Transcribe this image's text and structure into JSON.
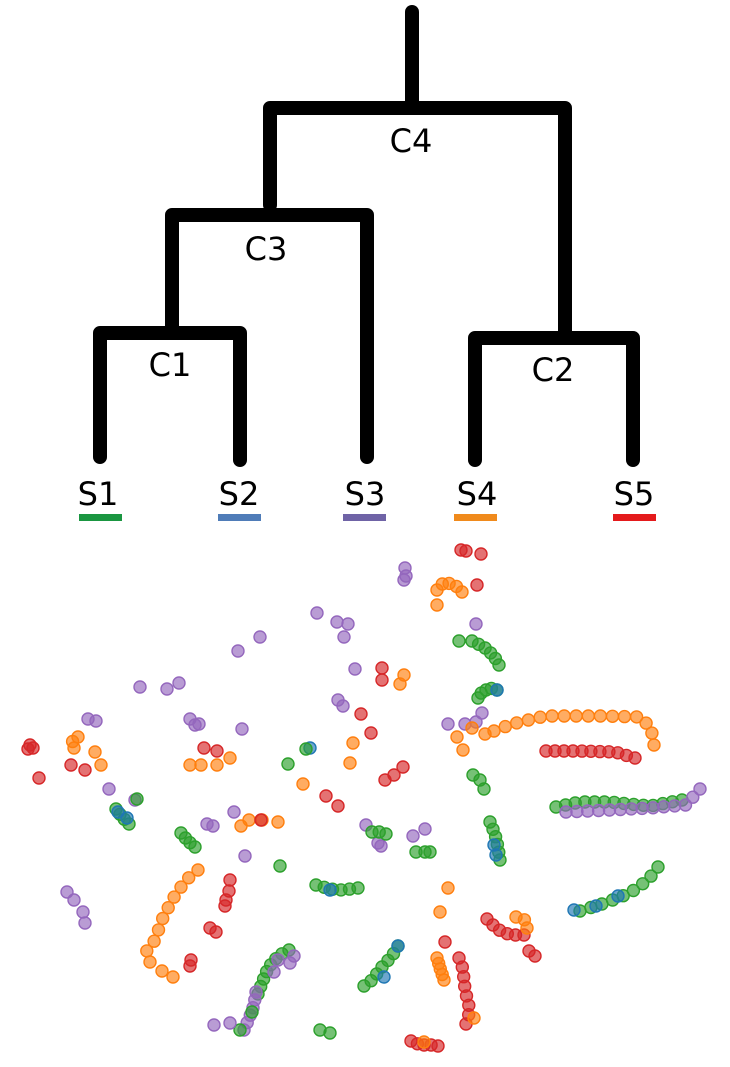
{
  "dendrogram": {
    "clusters": [
      {
        "id": "c4",
        "label": "C4"
      },
      {
        "id": "c3",
        "label": "C3"
      },
      {
        "id": "c1",
        "label": "C1"
      },
      {
        "id": "c2",
        "label": "C2"
      }
    ],
    "leaves": [
      {
        "id": "s1",
        "label": "S1",
        "color": "#1a9641"
      },
      {
        "id": "s2",
        "label": "S2",
        "color": "#4f7cb8"
      },
      {
        "id": "s3",
        "label": "S3",
        "color": "#6f63a6"
      },
      {
        "id": "s4",
        "label": "S4",
        "color": "#f08a1c"
      },
      {
        "id": "s5",
        "label": "S5",
        "color": "#e41a1c"
      }
    ]
  },
  "scatter_colors": {
    "green": "#2ca02c",
    "blue": "#1f77b4",
    "purple": "#9467bd",
    "orange": "#ff7f0e",
    "red": "#d62728"
  }
}
